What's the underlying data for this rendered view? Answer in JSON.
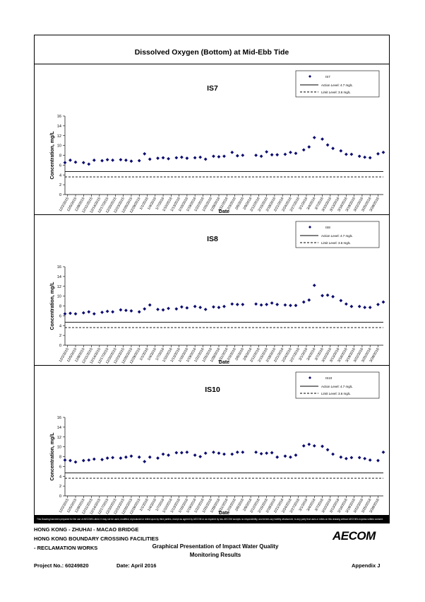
{
  "main_title": "Dissolved Oxygen (Bottom) at Mid-Ebb Tide",
  "disclaimer": "This Drawing has been prepared for the use of AECOM's client. It may not be used, modified, reproduced or relied upon by third parties, except as agreed by AECOM or as required by law. AECOM accepts no responsibility, and denies any liability whatsoever, to any party that uses or relies on this drawing without AECOM's express written consent.",
  "footer": {
    "line1": "HONG KONG - ZHUHAI - MACAO BRIDGE",
    "line2": "HONG KONG BOUNDARY CROSSING FACILITIES",
    "line3": "- RECLAMATION WORKS",
    "center1": "Graphical Presentation of Impact Water Quality",
    "center2": "Monitoring Results",
    "project": "Project No.: 60249820",
    "date": "Date: April 2016",
    "appendix": "Appendix J",
    "logo": "AECOM"
  },
  "colors": {
    "marker": "#0a0a6e",
    "line": "#000000"
  },
  "chart_data": [
    {
      "type": "scatter",
      "title": "IS7",
      "xlabel": "Date",
      "ylabel": "Concentration, mg/L",
      "ylim": [
        0,
        16
      ],
      "yticks": [
        0,
        2,
        4,
        6,
        8,
        10,
        12,
        14,
        16
      ],
      "xticks": [
        "12/2/2015",
        "12/5/2015",
        "12/8/2015",
        "12/11/2015",
        "12/14/2015",
        "12/17/2015",
        "12/20/2015",
        "12/23/2015",
        "12/26/2015",
        "12/29/2015",
        "1/1/2016",
        "1/4/2016",
        "1/7/2016",
        "1/10/2016",
        "1/13/2016",
        "1/16/2016",
        "1/19/2016",
        "1/22/2016",
        "1/25/2016",
        "1/28/2016",
        "1/31/2016",
        "2/3/2016",
        "2/6/2016",
        "2/9/2016",
        "2/12/2016",
        "2/15/2016",
        "2/18/2016",
        "2/21/2016",
        "2/24/2016",
        "2/27/2016",
        "3/1/2016",
        "3/4/2016",
        "3/7/2016",
        "3/10/2016",
        "3/13/2016",
        "3/16/2016",
        "3/19/2016",
        "3/22/2016",
        "3/25/2016",
        "3/28/2016"
      ],
      "series": [
        {
          "name": "IS7",
          "x": [
            "2015-12-01",
            "2015-12-03",
            "2015-12-05",
            "2015-12-08",
            "2015-12-10",
            "2015-12-12",
            "2015-12-15",
            "2015-12-17",
            "2015-12-19",
            "2015-12-22",
            "2015-12-24",
            "2015-12-26",
            "2015-12-29",
            "2015-12-31",
            "2016-01-02",
            "2016-01-05",
            "2016-01-07",
            "2016-01-09",
            "2016-01-12",
            "2016-01-14",
            "2016-01-16",
            "2016-01-19",
            "2016-01-21",
            "2016-01-23",
            "2016-01-26",
            "2016-01-28",
            "2016-01-30",
            "2016-02-02",
            "2016-02-04",
            "2016-02-06",
            "2016-02-11",
            "2016-02-13",
            "2016-02-15",
            "2016-02-17",
            "2016-02-19",
            "2016-02-22",
            "2016-02-24",
            "2016-02-26",
            "2016-02-29",
            "2016-03-02",
            "2016-03-04",
            "2016-03-07",
            "2016-03-09",
            "2016-03-11",
            "2016-03-14",
            "2016-03-16",
            "2016-03-18",
            "2016-03-21",
            "2016-03-23",
            "2016-03-25",
            "2016-03-28",
            "2016-03-30"
          ],
          "y": [
            6.5,
            7.0,
            6.6,
            6.5,
            6.2,
            7.0,
            6.9,
            7.1,
            7.0,
            7.1,
            7.0,
            6.8,
            6.9,
            8.3,
            7.2,
            7.4,
            7.5,
            7.3,
            7.5,
            7.6,
            7.4,
            7.5,
            7.6,
            7.2,
            7.8,
            7.7,
            7.8,
            8.6,
            7.9,
            8.0,
            8.0,
            7.8,
            8.7,
            8.1,
            8.1,
            8.2,
            8.6,
            8.4,
            9.1,
            9.7,
            11.6,
            11.3,
            10.1,
            9.4,
            8.9,
            8.2,
            8.2,
            7.8,
            7.6,
            7.5,
            8.3,
            8.6
          ]
        },
        {
          "name": "Action Level: 4.7 mg/L",
          "value": 4.7,
          "style": "solid"
        },
        {
          "name": "Limit Level: 3.6 mg/L",
          "value": 3.6,
          "style": "dashed"
        }
      ]
    },
    {
      "type": "scatter",
      "title": "IS8",
      "xlabel": "Date",
      "ylabel": "Concentration, mg/L",
      "ylim": [
        0,
        16
      ],
      "yticks": [
        0,
        2,
        4,
        6,
        8,
        10,
        12,
        14,
        16
      ],
      "xticks": [
        "12/2/2015",
        "12/5/2015",
        "12/8/2015",
        "12/11/2015",
        "12/14/2015",
        "12/17/2015",
        "12/20/2015",
        "12/23/2015",
        "12/26/2015",
        "12/29/2015",
        "1/1/2016",
        "1/4/2016",
        "1/7/2016",
        "1/10/2016",
        "1/13/2016",
        "1/16/2016",
        "1/19/2016",
        "1/22/2016",
        "1/25/2016",
        "1/28/2016",
        "1/31/2016",
        "2/3/2016",
        "2/6/2016",
        "2/9/2016",
        "2/12/2016",
        "2/15/2016",
        "2/18/2016",
        "2/21/2016",
        "2/24/2016",
        "2/27/2016",
        "3/1/2016",
        "3/4/2016",
        "3/7/2016",
        "3/10/2016",
        "3/13/2016",
        "3/16/2016",
        "3/19/2016",
        "3/22/2016",
        "3/25/2016",
        "3/28/2016"
      ],
      "series": [
        {
          "name": "IS8",
          "x": [
            "2015-12-01",
            "2015-12-03",
            "2015-12-05",
            "2015-12-08",
            "2015-12-10",
            "2015-12-12",
            "2015-12-15",
            "2015-12-17",
            "2015-12-19",
            "2015-12-22",
            "2015-12-24",
            "2015-12-26",
            "2015-12-29",
            "2015-12-31",
            "2016-01-02",
            "2016-01-05",
            "2016-01-07",
            "2016-01-09",
            "2016-01-12",
            "2016-01-14",
            "2016-01-16",
            "2016-01-19",
            "2016-01-21",
            "2016-01-23",
            "2016-01-26",
            "2016-01-28",
            "2016-01-30",
            "2016-02-02",
            "2016-02-04",
            "2016-02-06",
            "2016-02-11",
            "2016-02-13",
            "2016-02-15",
            "2016-02-17",
            "2016-02-19",
            "2016-02-22",
            "2016-02-24",
            "2016-02-26",
            "2016-02-29",
            "2016-03-02",
            "2016-03-04",
            "2016-03-07",
            "2016-03-09",
            "2016-03-11",
            "2016-03-14",
            "2016-03-16",
            "2016-03-18",
            "2016-03-21",
            "2016-03-23",
            "2016-03-25",
            "2016-03-28",
            "2016-03-30"
          ],
          "y": [
            6.4,
            6.5,
            6.4,
            6.6,
            6.8,
            6.4,
            6.7,
            6.9,
            6.8,
            7.2,
            7.1,
            7.0,
            6.8,
            7.4,
            8.2,
            7.3,
            7.2,
            7.5,
            7.4,
            7.8,
            7.6,
            7.9,
            7.7,
            7.3,
            7.8,
            7.7,
            7.9,
            8.4,
            8.3,
            8.3,
            8.4,
            8.2,
            8.3,
            8.6,
            8.3,
            8.2,
            8.1,
            8.1,
            8.8,
            9.2,
            12.2,
            10.1,
            10.2,
            9.9,
            9.1,
            8.4,
            7.9,
            7.9,
            7.7,
            7.7,
            8.3,
            8.8
          ]
        },
        {
          "name": "Action Level: 4.7 mg/L",
          "value": 4.7,
          "style": "solid"
        },
        {
          "name": "Limit Level: 3.6 mg/L",
          "value": 3.6,
          "style": "dashed"
        }
      ]
    },
    {
      "type": "scatter",
      "title": "IS10",
      "xlabel": "Date",
      "ylabel": "Concentration, mg/L",
      "ylim": [
        0,
        16
      ],
      "yticks": [
        0,
        2,
        4,
        6,
        8,
        10,
        12,
        14,
        16
      ],
      "xticks": [
        "12/2/2015",
        "12/5/2015",
        "12/8/2015",
        "12/11/2015",
        "12/14/2015",
        "12/17/2015",
        "12/20/2015",
        "12/23/2015",
        "12/26/2015",
        "12/29/2015",
        "1/1/2016",
        "1/4/2016",
        "1/7/2016",
        "1/10/2016",
        "1/13/2016",
        "1/16/2016",
        "1/19/2016",
        "1/22/2016",
        "1/25/2016",
        "1/28/2016",
        "1/31/2016",
        "2/3/2016",
        "2/6/2016",
        "2/9/2016",
        "2/12/2016",
        "2/15/2016",
        "2/18/2016",
        "2/21/2016",
        "2/24/2016",
        "2/27/2016",
        "3/1/2016",
        "3/4/2016",
        "3/7/2016",
        "3/10/2016",
        "3/13/2016",
        "3/16/2016",
        "3/19/2016",
        "3/22/2016",
        "3/25/2016",
        "3/28/2016"
      ],
      "series": [
        {
          "name": "IS10",
          "x": [
            "2015-12-01",
            "2015-12-03",
            "2015-12-05",
            "2015-12-08",
            "2015-12-10",
            "2015-12-12",
            "2015-12-15",
            "2015-12-17",
            "2015-12-19",
            "2015-12-22",
            "2015-12-24",
            "2015-12-26",
            "2015-12-29",
            "2015-12-31",
            "2016-01-02",
            "2016-01-05",
            "2016-01-07",
            "2016-01-09",
            "2016-01-12",
            "2016-01-14",
            "2016-01-16",
            "2016-01-19",
            "2016-01-21",
            "2016-01-23",
            "2016-01-26",
            "2016-01-28",
            "2016-01-30",
            "2016-02-02",
            "2016-02-04",
            "2016-02-06",
            "2016-02-11",
            "2016-02-13",
            "2016-02-15",
            "2016-02-17",
            "2016-02-19",
            "2016-02-22",
            "2016-02-24",
            "2016-02-26",
            "2016-02-29",
            "2016-03-02",
            "2016-03-04",
            "2016-03-07",
            "2016-03-09",
            "2016-03-11",
            "2016-03-14",
            "2016-03-16",
            "2016-03-18",
            "2016-03-21",
            "2016-03-23",
            "2016-03-25",
            "2016-03-28",
            "2016-03-30"
          ],
          "y": [
            7.3,
            7.2,
            6.9,
            7.2,
            7.3,
            7.5,
            7.4,
            7.7,
            7.8,
            7.7,
            7.9,
            8.1,
            7.9,
            7.0,
            7.9,
            7.7,
            8.5,
            8.3,
            8.8,
            8.8,
            8.9,
            8.3,
            8.0,
            8.7,
            8.9,
            8.7,
            8.5,
            8.5,
            8.9,
            8.9,
            8.9,
            8.6,
            8.7,
            8.8,
            7.9,
            8.1,
            7.9,
            8.3,
            10.2,
            10.5,
            10.2,
            10.1,
            9.4,
            8.5,
            7.9,
            7.6,
            7.8,
            7.8,
            7.6,
            7.3,
            7.2,
            8.9
          ]
        },
        {
          "name": "Action Level: 4.7 mg/L",
          "value": 4.7,
          "style": "solid"
        },
        {
          "name": "Limit Level: 3.6 mg/L",
          "value": 3.6,
          "style": "dashed"
        }
      ]
    }
  ]
}
